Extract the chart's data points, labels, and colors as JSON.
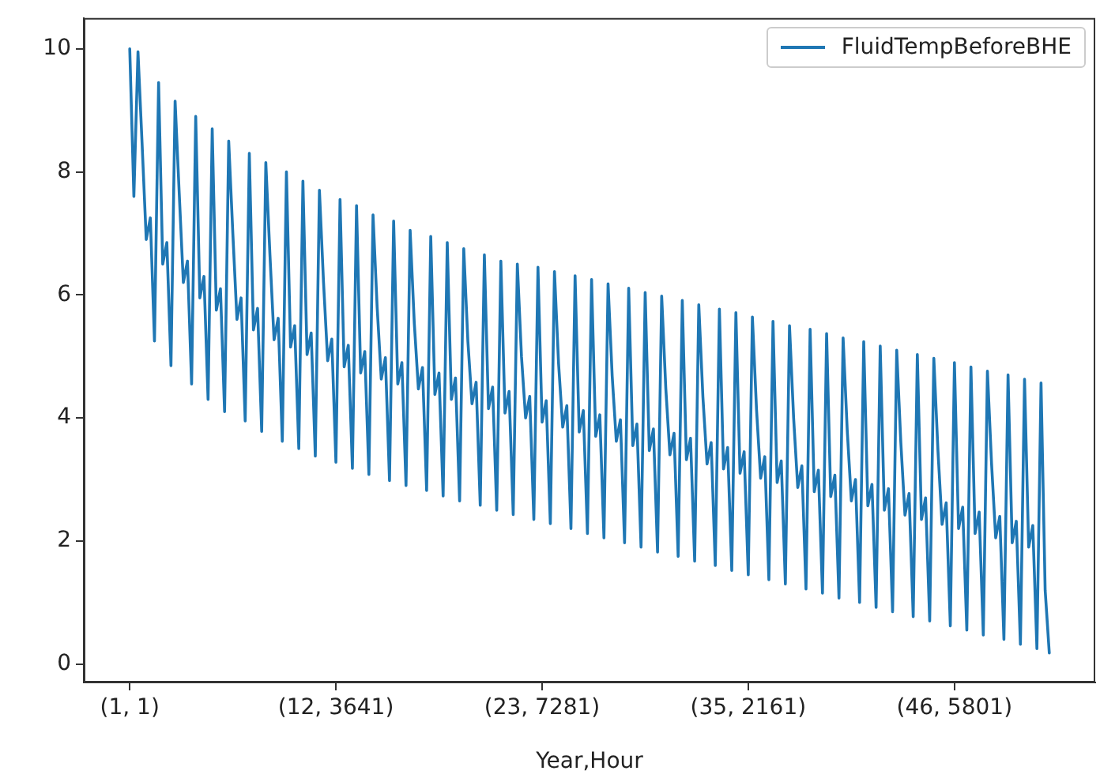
{
  "chart_data": {
    "type": "line",
    "xlabel": "Year,Hour",
    "legend": "top right",
    "grid": false,
    "marker": "none",
    "line_style": "solid",
    "ylim": [
      -0.3,
      10.5
    ],
    "yticks": [
      0,
      2,
      4,
      6,
      8,
      10
    ],
    "categories": [
      "(1, 1)",
      null,
      null,
      null,
      null,
      null,
      null,
      null,
      null,
      null,
      null,
      null,
      null,
      null,
      null,
      null,
      null,
      null,
      null,
      null,
      null,
      null,
      null,
      null,
      null,
      null,
      null,
      null,
      null,
      null,
      null,
      null,
      null,
      null,
      null,
      null,
      null,
      null,
      null,
      null,
      null,
      null,
      null,
      null,
      null,
      null,
      null,
      null,
      null,
      null,
      "(12, 3641)",
      null,
      null,
      null,
      null,
      null,
      null,
      null,
      null,
      null,
      null,
      null,
      null,
      null,
      null,
      null,
      null,
      null,
      null,
      null,
      null,
      null,
      null,
      null,
      null,
      null,
      null,
      null,
      null,
      null,
      null,
      null,
      null,
      null,
      null,
      null,
      null,
      null,
      null,
      null,
      null,
      null,
      null,
      null,
      null,
      null,
      null,
      null,
      null,
      null,
      "(23, 7281)",
      null,
      null,
      null,
      null,
      null,
      null,
      null,
      null,
      null,
      null,
      null,
      null,
      null,
      null,
      null,
      null,
      null,
      null,
      null,
      null,
      null,
      null,
      null,
      null,
      null,
      null,
      null,
      null,
      null,
      null,
      null,
      null,
      null,
      null,
      null,
      null,
      null,
      null,
      null,
      null,
      null,
      null,
      null,
      null,
      null,
      null,
      null,
      null,
      null,
      "(35, 2161)",
      null,
      null,
      null,
      null,
      null,
      null,
      null,
      null,
      null,
      null,
      null,
      null,
      null,
      null,
      null,
      null,
      null,
      null,
      null,
      null,
      null,
      null,
      null,
      null,
      null,
      null,
      null,
      null,
      null,
      null,
      null,
      null,
      null,
      null,
      null,
      null,
      null,
      null,
      null,
      null,
      null,
      null,
      null,
      null,
      null,
      null,
      null,
      null,
      null,
      "(46, 5801)",
      null,
      null,
      null,
      null,
      null,
      null,
      null,
      null,
      null,
      null,
      null,
      null,
      null,
      null,
      null,
      null,
      null,
      null,
      null,
      null,
      null,
      null,
      null
    ],
    "series": [
      {
        "name": "FluidTempBeforeBHE",
        "color": "#1f77b4",
        "values": [
          10.0,
          7.6,
          9.95,
          8.45,
          6.9,
          7.25,
          5.25,
          9.45,
          6.5,
          6.85,
          4.85,
          9.15,
          7.65,
          6.2,
          6.55,
          4.55,
          8.9,
          5.95,
          6.3,
          4.3,
          8.7,
          5.75,
          6.1,
          4.1,
          8.5,
          7.0,
          5.6,
          5.95,
          3.95,
          8.3,
          5.43,
          5.78,
          3.78,
          8.15,
          6.65,
          5.27,
          5.62,
          3.62,
          8.0,
          5.15,
          5.5,
          3.5,
          7.85,
          5.03,
          5.38,
          3.38,
          7.7,
          6.2,
          4.93,
          5.28,
          3.28,
          7.55,
          4.83,
          5.18,
          3.18,
          7.45,
          4.73,
          5.08,
          3.08,
          7.3,
          5.8,
          4.63,
          4.98,
          2.98,
          7.2,
          4.55,
          4.9,
          2.9,
          7.05,
          5.55,
          4.47,
          4.82,
          2.82,
          6.95,
          4.38,
          4.73,
          2.73,
          6.85,
          4.3,
          4.65,
          2.65,
          6.75,
          5.25,
          4.23,
          4.58,
          2.58,
          6.65,
          4.15,
          4.5,
          2.5,
          6.55,
          4.08,
          4.43,
          2.43,
          6.5,
          5.0,
          4.0,
          4.35,
          2.35,
          6.45,
          3.93,
          4.28,
          2.28,
          6.38,
          4.88,
          3.85,
          4.2,
          2.2,
          6.31,
          3.77,
          4.12,
          2.12,
          6.25,
          3.7,
          4.05,
          2.05,
          6.18,
          4.68,
          3.62,
          3.97,
          1.97,
          6.11,
          3.55,
          3.9,
          1.9,
          6.04,
          3.47,
          3.82,
          1.82,
          5.98,
          4.48,
          3.4,
          3.75,
          1.75,
          5.91,
          3.32,
          3.67,
          1.67,
          5.84,
          4.34,
          3.25,
          3.6,
          1.6,
          5.77,
          3.17,
          3.52,
          1.52,
          5.71,
          3.1,
          3.45,
          1.45,
          5.64,
          4.14,
          3.02,
          3.37,
          1.37,
          5.57,
          2.95,
          3.3,
          1.3,
          5.5,
          4.0,
          2.87,
          3.22,
          1.22,
          5.44,
          2.8,
          3.15,
          1.15,
          5.37,
          2.72,
          3.07,
          1.07,
          5.3,
          3.8,
          2.65,
          3.0,
          1.0,
          5.24,
          2.57,
          2.92,
          0.92,
          5.17,
          2.5,
          2.85,
          0.85,
          5.1,
          3.6,
          2.42,
          2.77,
          0.77,
          5.03,
          2.35,
          2.7,
          0.7,
          4.97,
          3.47,
          2.27,
          2.62,
          0.62,
          4.9,
          2.2,
          2.55,
          0.55,
          4.83,
          2.12,
          2.47,
          0.47,
          4.76,
          3.26,
          2.05,
          2.4,
          0.4,
          4.7,
          1.97,
          2.32,
          0.32,
          4.63,
          1.9,
          2.25,
          0.25,
          4.57,
          1.2,
          0.18
        ]
      }
    ]
  }
}
